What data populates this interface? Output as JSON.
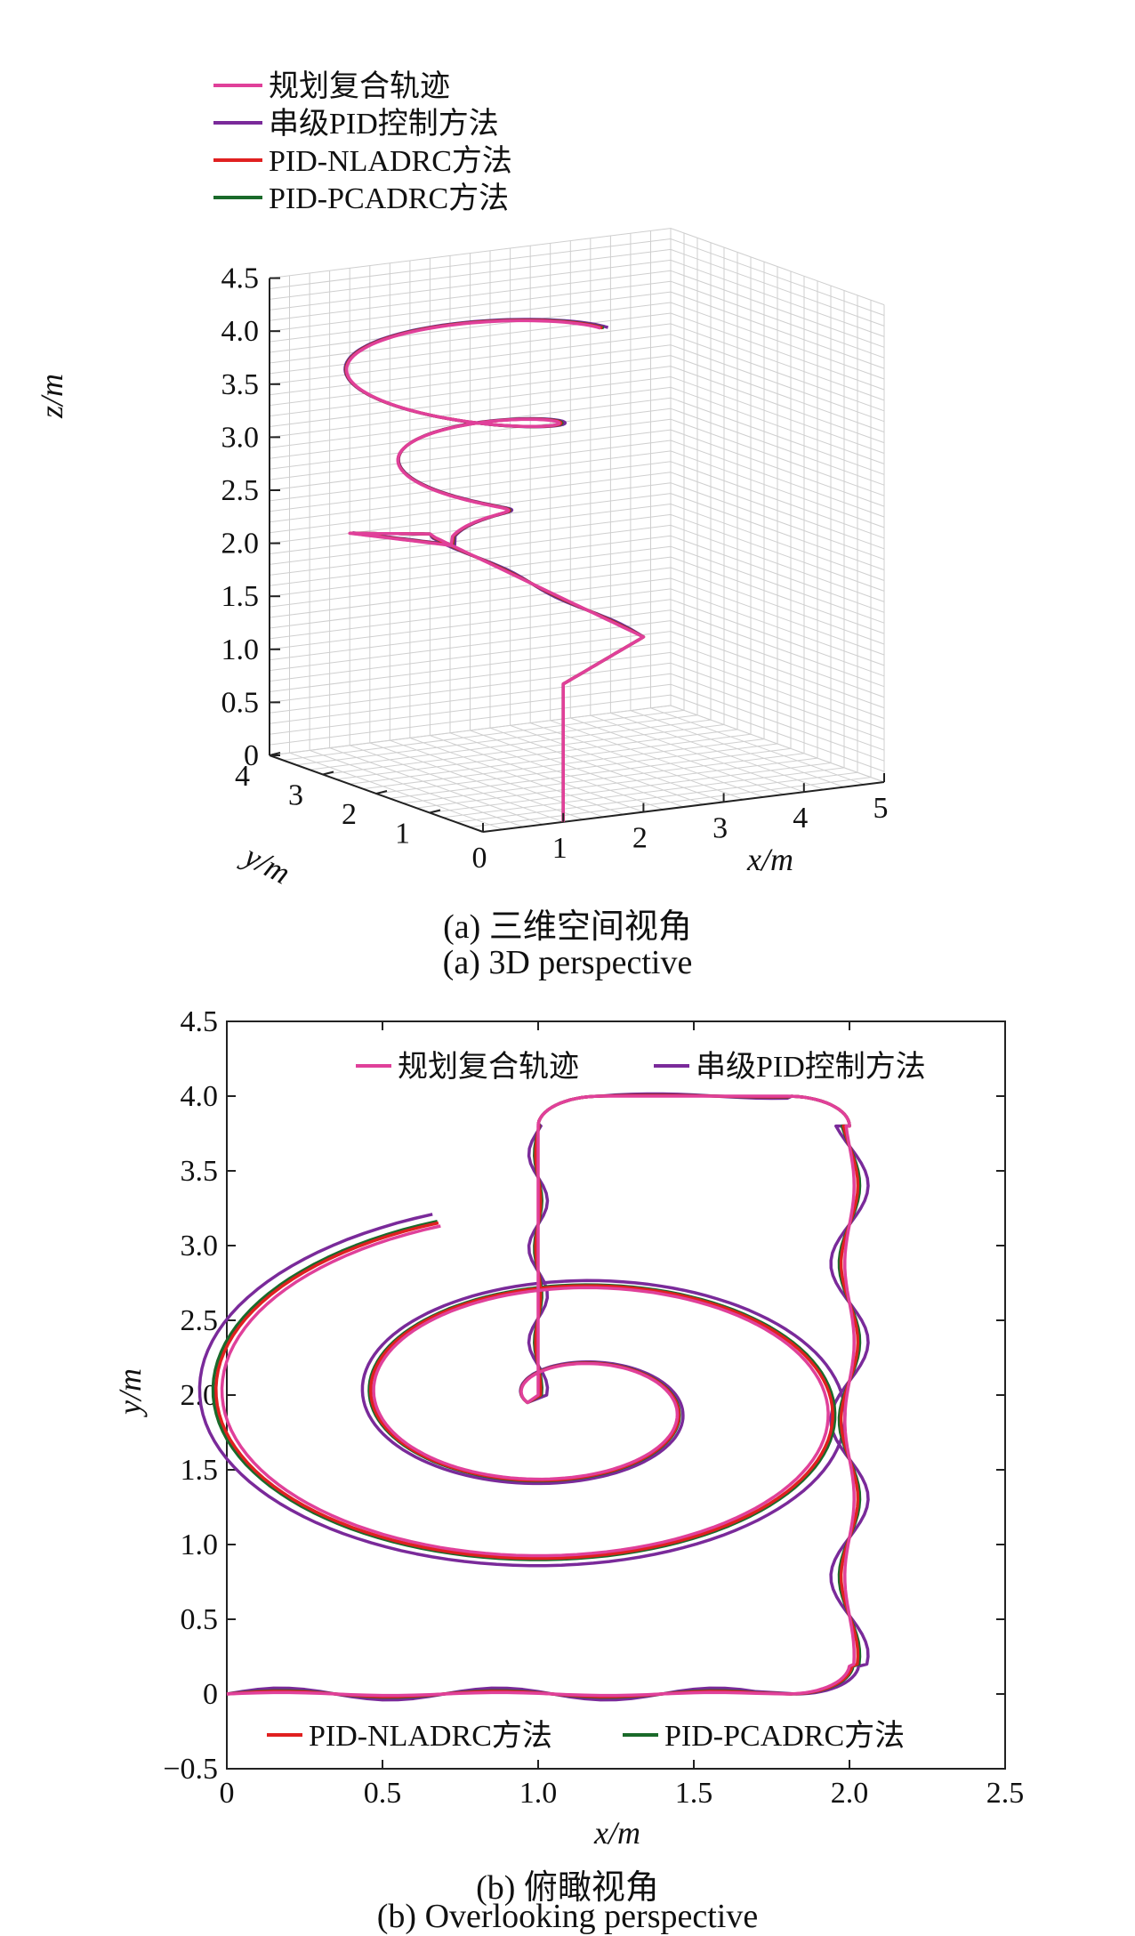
{
  "colors": {
    "planned": "#e0409a",
    "cascade_pid": "#7a2a9a",
    "pid_nladrc": "#e02020",
    "pid_pcadrc": "#1a6a2a",
    "grid": "#cfcfcf",
    "axis": "#222222"
  },
  "captions": {
    "a_cn": "(a) 三维空间视角",
    "a_en": "(a) 3D perspective",
    "b_cn": "(b) 俯瞰视角",
    "b_en": "(b) Overlooking perspective"
  },
  "chart_data": [
    {
      "type": "line",
      "projection": "3d",
      "title": "",
      "xlabel": "x/m",
      "ylabel": "y/m",
      "zlabel": "z/m",
      "xlim": [
        0,
        5
      ],
      "ylim": [
        0,
        4
      ],
      "zlim": [
        0,
        4.5
      ],
      "x_ticks": [
        "0",
        "1",
        "2",
        "3",
        "4",
        "5"
      ],
      "y_ticks": [
        "1",
        "2",
        "3",
        "4"
      ],
      "z_ticks": [
        "0",
        "0.5",
        "1.0",
        "1.5",
        "2.0",
        "2.5",
        "3.0",
        "3.5",
        "4.0",
        "4.5"
      ],
      "grid": true,
      "legend_position": "top-left",
      "series": [
        {
          "name": "规划复合轨迹"
        },
        {
          "name": "串级PID控制方法"
        },
        {
          "name": "PID-NLADRC方法"
        },
        {
          "name": "PID-PCADRC方法"
        }
      ]
    },
    {
      "type": "line",
      "title": "",
      "xlabel": "x/m",
      "ylabel": "y/m",
      "xlim": [
        0,
        2.5
      ],
      "ylim": [
        -0.5,
        4.5
      ],
      "x_ticks": [
        "0",
        "0.5",
        "1.0",
        "1.5",
        "2.0",
        "2.5"
      ],
      "y_ticks": [
        "−0.5",
        "0",
        "0.5",
        "1.0",
        "1.5",
        "2.0",
        "2.5",
        "3.0",
        "3.5",
        "4.0",
        "4.5"
      ],
      "grid": false,
      "legend_position": "top-right and bottom",
      "series": [
        {
          "name": "规划复合轨迹"
        },
        {
          "name": "串级PID控制方法"
        },
        {
          "name": "PID-NLADRC方法"
        },
        {
          "name": "PID-PCADRC方法"
        }
      ]
    }
  ]
}
